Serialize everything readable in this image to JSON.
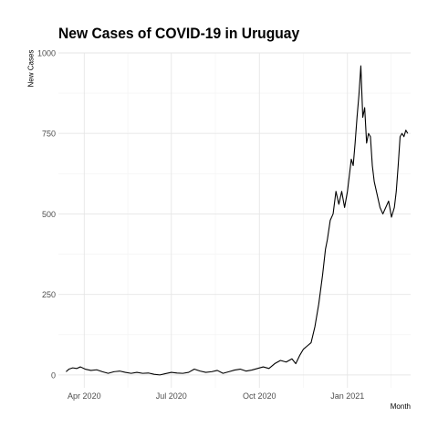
{
  "chart_data": {
    "type": "line",
    "title": "New Cases of COVID-19 in Uruguay",
    "xlabel": "Month",
    "ylabel": "New Cases",
    "ylim": [
      -40,
      1000
    ],
    "xlim": [
      "2020-03-05",
      "2021-03-08"
    ],
    "grid": true,
    "y_ticks": [
      0,
      250,
      500,
      750,
      1000
    ],
    "x_ticks": [
      {
        "date": "2020-04-01",
        "label": "Apr 2020"
      },
      {
        "date": "2020-07-01",
        "label": "Jul 2020"
      },
      {
        "date": "2020-10-01",
        "label": "Oct 2020"
      },
      {
        "date": "2021-01-01",
        "label": "Jan 2021"
      }
    ],
    "line_color": "#000000",
    "series": [
      {
        "x": [
          "2020-03-13",
          "2020-03-16",
          "2020-03-20",
          "2020-03-24",
          "2020-03-28",
          "2020-04-02",
          "2020-04-08",
          "2020-04-14",
          "2020-04-20",
          "2020-04-26",
          "2020-05-02",
          "2020-05-08",
          "2020-05-14",
          "2020-05-20",
          "2020-05-26",
          "2020-06-01",
          "2020-06-07",
          "2020-06-13",
          "2020-06-19",
          "2020-06-25",
          "2020-07-01",
          "2020-07-07",
          "2020-07-13",
          "2020-07-19",
          "2020-07-25",
          "2020-07-31",
          "2020-08-06",
          "2020-08-12",
          "2020-08-18",
          "2020-08-24",
          "2020-08-30",
          "2020-09-05",
          "2020-09-11",
          "2020-09-17",
          "2020-09-23",
          "2020-09-29",
          "2020-10-05",
          "2020-10-11",
          "2020-10-17",
          "2020-10-23",
          "2020-10-29",
          "2020-11-04",
          "2020-11-08",
          "2020-11-12",
          "2020-11-16",
          "2020-11-20",
          "2020-11-24",
          "2020-11-28",
          "2020-12-02",
          "2020-12-06",
          "2020-12-09",
          "2020-12-11",
          "2020-12-14",
          "2020-12-17",
          "2020-12-20",
          "2020-12-23",
          "2020-12-26",
          "2020-12-29",
          "2021-01-01",
          "2021-01-03",
          "2021-01-05",
          "2021-01-07",
          "2021-01-09",
          "2021-01-11",
          "2021-01-13",
          "2021-01-15",
          "2021-01-17",
          "2021-01-19",
          "2021-01-21",
          "2021-01-23",
          "2021-01-25",
          "2021-01-27",
          "2021-01-29",
          "2021-02-01",
          "2021-02-04",
          "2021-02-07",
          "2021-02-10",
          "2021-02-13",
          "2021-02-16",
          "2021-02-19",
          "2021-02-21",
          "2021-02-23",
          "2021-02-25",
          "2021-02-27",
          "2021-03-01",
          "2021-03-03",
          "2021-03-05"
        ],
        "values": [
          10,
          18,
          22,
          20,
          25,
          18,
          14,
          16,
          10,
          5,
          10,
          12,
          8,
          5,
          8,
          5,
          6,
          2,
          0,
          4,
          8,
          6,
          5,
          8,
          18,
          12,
          8,
          10,
          14,
          5,
          10,
          15,
          18,
          12,
          15,
          20,
          25,
          20,
          35,
          45,
          40,
          50,
          35,
          60,
          80,
          90,
          100,
          150,
          220,
          310,
          390,
          420,
          480,
          500,
          570,
          530,
          570,
          520,
          570,
          620,
          670,
          650,
          720,
          800,
          870,
          960,
          800,
          830,
          720,
          750,
          740,
          650,
          600,
          560,
          520,
          500,
          520,
          540,
          490,
          520,
          570,
          650,
          740,
          750,
          740,
          760,
          750
        ]
      }
    ]
  }
}
